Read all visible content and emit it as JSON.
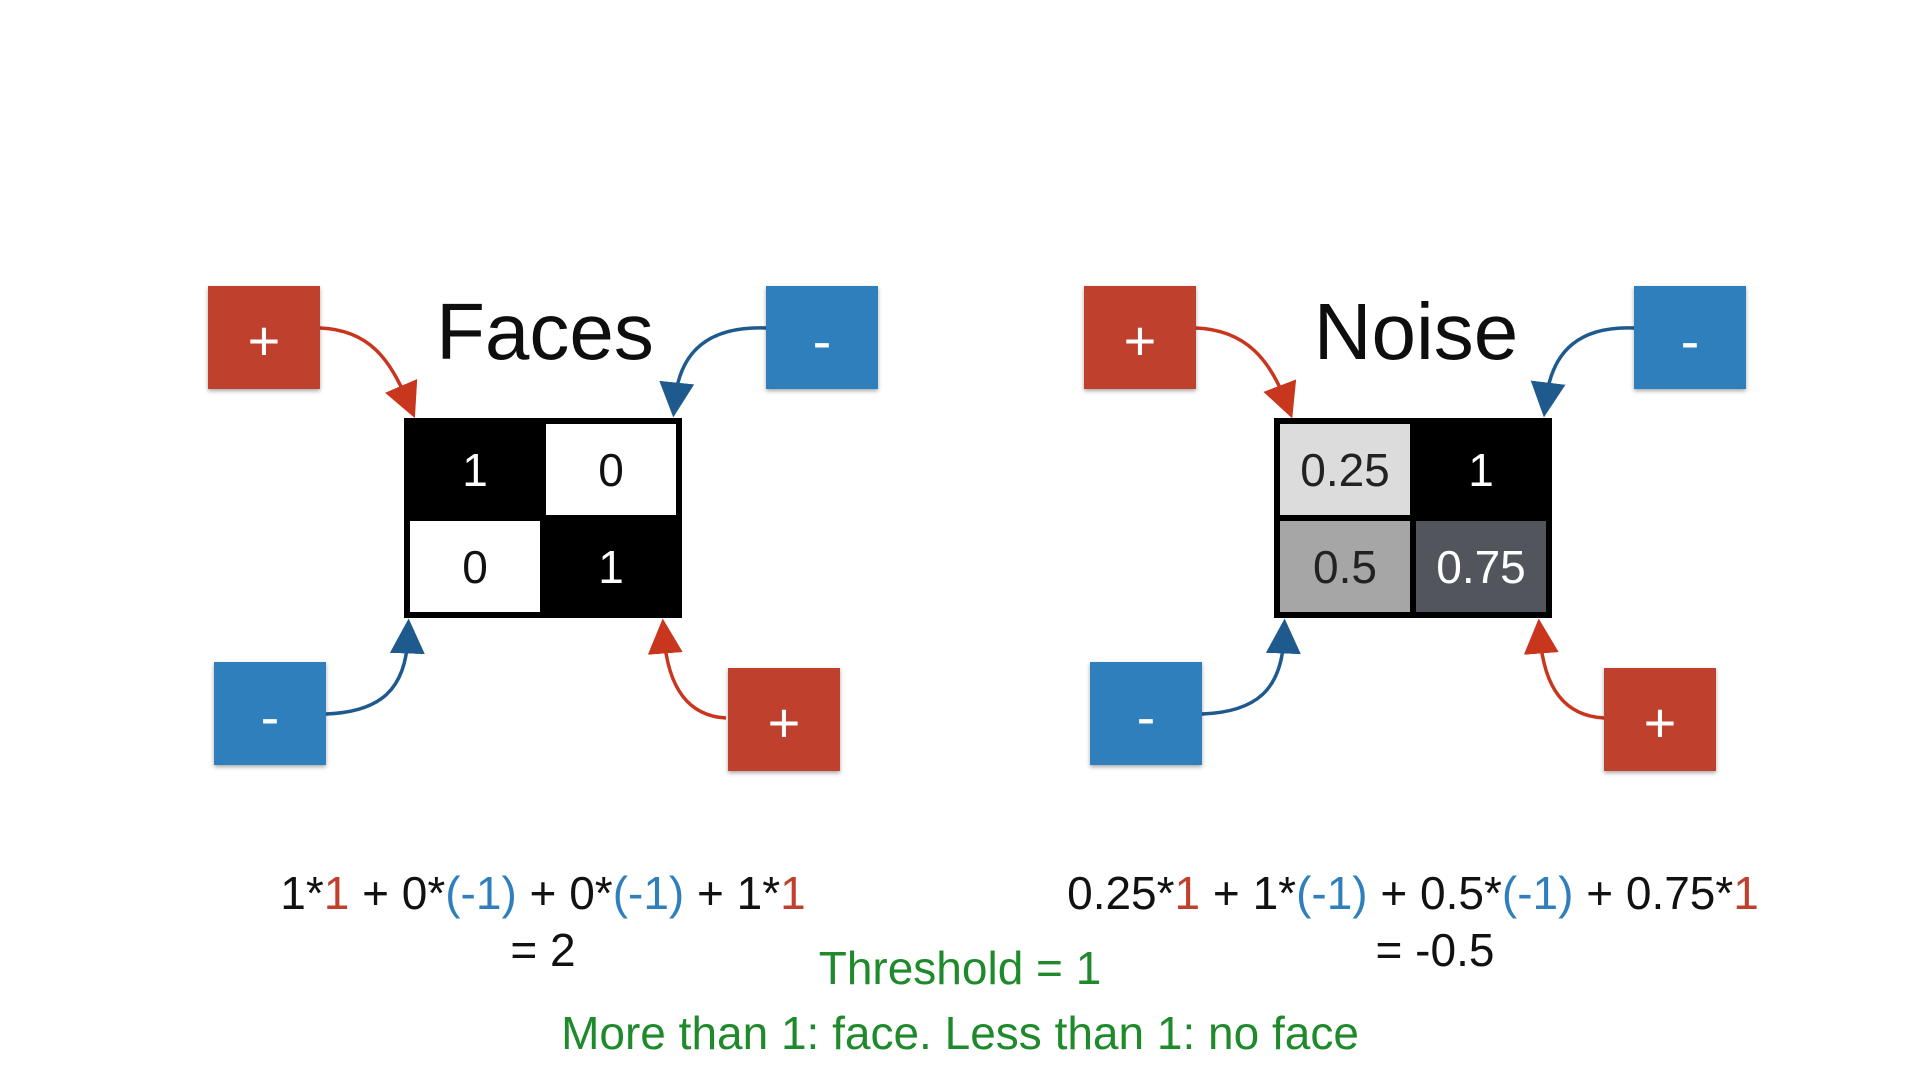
{
  "colors": {
    "plus": "#c0402e",
    "minus": "#2f7fbd",
    "coef_plus": "#c0402e",
    "coef_minus": "#2f7fbd",
    "green": "#1e8a2c",
    "arrow_plus": "#c8361e",
    "arrow_minus": "#1f5a8e"
  },
  "faces": {
    "title": "Faces",
    "cells": [
      {
        "value": "1",
        "bg": "#000000",
        "fg": "#ffffff"
      },
      {
        "value": "0",
        "bg": "#ffffff",
        "fg": "#111111"
      },
      {
        "value": "0",
        "bg": "#ffffff",
        "fg": "#111111"
      },
      {
        "value": "1",
        "bg": "#000000",
        "fg": "#ffffff"
      }
    ],
    "signs": {
      "top_left": "+",
      "top_right": "-",
      "bottom_left": "-",
      "bottom_right": "+"
    },
    "equation": [
      {
        "t": "1*",
        "c": "text"
      },
      {
        "t": "1",
        "c": "plus"
      },
      {
        "t": " + 0*",
        "c": "text"
      },
      {
        "t": "(-1)",
        "c": "minus"
      },
      {
        "t": " + 0*",
        "c": "text"
      },
      {
        "t": "(-1)",
        "c": "minus"
      },
      {
        "t": " + 1*",
        "c": "text"
      },
      {
        "t": "1",
        "c": "plus"
      }
    ],
    "result": "= 2"
  },
  "noise": {
    "title": "Noise",
    "cells": [
      {
        "value": "0.25",
        "bg": "#dcdcdc",
        "fg": "#222222"
      },
      {
        "value": "1",
        "bg": "#000000",
        "fg": "#ffffff"
      },
      {
        "value": "0.5",
        "bg": "#a6a6a6",
        "fg": "#222222"
      },
      {
        "value": "0.75",
        "bg": "#52565c",
        "fg": "#ffffff"
      }
    ],
    "signs": {
      "top_left": "+",
      "top_right": "-",
      "bottom_left": "-",
      "bottom_right": "+"
    },
    "equation": [
      {
        "t": "0.25*",
        "c": "text"
      },
      {
        "t": "1",
        "c": "plus"
      },
      {
        "t": " + 1*",
        "c": "text"
      },
      {
        "t": "(-1)",
        "c": "minus"
      },
      {
        "t": " + 0.5*",
        "c": "text"
      },
      {
        "t": "(-1)",
        "c": "minus"
      },
      {
        "t": " + 0.75*",
        "c": "text"
      },
      {
        "t": "1",
        "c": "plus"
      }
    ],
    "result": "= -0.5"
  },
  "threshold": "Threshold = 1",
  "rule": "More than 1: face. Less than 1: no face"
}
